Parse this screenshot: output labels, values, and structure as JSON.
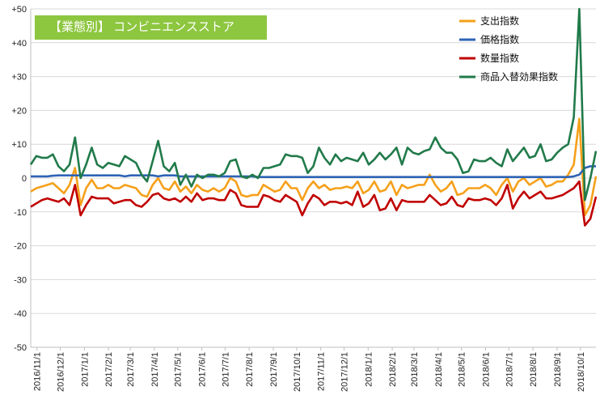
{
  "chart_data": {
    "type": "line",
    "title": "【業態別】 コンビニエンスストア",
    "xlabel": "",
    "ylabel": "",
    "ylim": [
      -50,
      50
    ],
    "yticks": [
      "+50",
      "+40",
      "+30",
      "+20",
      "+10",
      "0",
      "-10",
      "-20",
      "-30",
      "-40",
      "-50"
    ],
    "ytick_values": [
      50,
      40,
      30,
      20,
      10,
      0,
      -10,
      -20,
      -30,
      -40,
      -50
    ],
    "grid": true,
    "legend_position": "top-right",
    "x_tick_labels": [
      "2016/11/1",
      "2016/12/1",
      "2017/1/1",
      "2017/2/1",
      "2017/3/1",
      "2017/4/1",
      "2017/5/1",
      "2017/6/1",
      "2017/7/1",
      "2017/8/1",
      "2017/9/1",
      "2017/10/1",
      "2017/11/1",
      "2017/12/1",
      "2018/1/1",
      "2018/2/1",
      "2018/3/1",
      "2018/4/1",
      "2018/5/1",
      "2018/6/1",
      "2018/7/1",
      "2018/8/1",
      "2018/9/1",
      "2018/10/1"
    ],
    "x_start": "2016/10/24",
    "x_end": "2018/10/21",
    "series": [
      {
        "name": "支出指数",
        "color": "#f5a01a",
        "values": [
          -4,
          -3,
          -2.5,
          -2,
          -1.5,
          -3,
          -4.5,
          -2,
          3,
          -8,
          -3,
          -0.5,
          -3,
          -3,
          -2,
          -3,
          -3,
          -2,
          -2.5,
          -3,
          -5,
          -5.5,
          -2,
          0,
          -3,
          -3.5,
          -1,
          -4,
          -2.5,
          -4.5,
          -2,
          -3.5,
          -4,
          -3,
          -4,
          -3,
          0,
          -1,
          -5,
          -5.5,
          -5,
          -5,
          -2,
          -3,
          -4,
          -3.5,
          -1,
          -3,
          -3,
          -6.5,
          -3,
          -1,
          -3,
          -2,
          -3.5,
          -3,
          -3,
          -2.5,
          -3,
          -1,
          -4.5,
          -3.5,
          -1,
          -4,
          -3.5,
          -1,
          -5,
          -2,
          -3,
          -2.5,
          -2,
          -2,
          1,
          -2,
          -4,
          -3,
          -1,
          -5,
          -4.5,
          -3,
          -3,
          -3,
          -2,
          -3,
          -5,
          -2,
          0,
          -4,
          -1,
          0,
          -2,
          -1,
          0,
          -2.5,
          -2,
          -1,
          -1,
          1,
          4,
          17.5,
          -11,
          -8,
          0.5
        ]
      },
      {
        "name": "価格指数",
        "color": "#2e63b5",
        "values": [
          0.5,
          0.5,
          0.5,
          0.5,
          0.7,
          0.8,
          0.8,
          0.8,
          0.8,
          0.8,
          0.8,
          0.8,
          0.8,
          0.8,
          0.8,
          0.8,
          0.8,
          0.5,
          0.8,
          0.8,
          0.8,
          0.8,
          0.8,
          0.5,
          0.8,
          0.8,
          0.8,
          0.5,
          0.5,
          0.5,
          0.5,
          0.5,
          0.5,
          0.5,
          0.5,
          0.5,
          0.5,
          0.5,
          0.5,
          0.5,
          0.5,
          0.3,
          0.3,
          0.3,
          0.3,
          0.3,
          0.3,
          0.3,
          0.3,
          0.3,
          0.3,
          0.3,
          0.3,
          0.3,
          0.3,
          0.3,
          0.3,
          0.3,
          0.3,
          0.3,
          0.3,
          0.3,
          0.3,
          0.3,
          0.3,
          0.3,
          0.3,
          0.3,
          0.3,
          0.3,
          0.3,
          0.3,
          0.3,
          0.3,
          0.3,
          0.3,
          0.3,
          0.3,
          0.3,
          0.3,
          0.3,
          0.3,
          0.3,
          0.3,
          0.3,
          0.3,
          0.3,
          0.3,
          0.3,
          0.3,
          0.3,
          0.3,
          0.3,
          0.3,
          0.3,
          0.3,
          0.3,
          0.3,
          0.5,
          1,
          3,
          3.5,
          3.5
        ]
      },
      {
        "name": "数量指数",
        "color": "#c00000",
        "values": [
          -8.5,
          -7.5,
          -6.5,
          -6,
          -6.5,
          -7,
          -6,
          -8,
          -2,
          -11,
          -8,
          -5.5,
          -6,
          -6,
          -6,
          -7.5,
          -7,
          -6.5,
          -6.5,
          -8,
          -8.5,
          -7,
          -5,
          -4.5,
          -6,
          -6.5,
          -6,
          -7,
          -5.5,
          -7,
          -4.5,
          -6.5,
          -6,
          -6,
          -6.5,
          -6.5,
          -3.5,
          -4.5,
          -8,
          -8.5,
          -8.5,
          -8.5,
          -5,
          -5.5,
          -6.5,
          -7,
          -5,
          -6,
          -7,
          -11,
          -7.5,
          -5,
          -6,
          -8,
          -7,
          -7,
          -7.5,
          -7,
          -8,
          -4,
          -8.5,
          -7.5,
          -5,
          -9.5,
          -9,
          -6,
          -9.5,
          -6.5,
          -7,
          -7,
          -7,
          -7,
          -5,
          -6.5,
          -8,
          -7.5,
          -5.5,
          -8,
          -8.5,
          -6,
          -6.5,
          -6.5,
          -6,
          -6.5,
          -8,
          -6,
          -2,
          -9,
          -6,
          -4,
          -6,
          -5,
          -4,
          -6,
          -6,
          -5.5,
          -5,
          -4,
          -3,
          -1,
          -14,
          -12,
          -5.5
        ]
      },
      {
        "name": "商品入替効果指数",
        "color": "#217a4a",
        "values": [
          4,
          6.5,
          6,
          6,
          7,
          3.5,
          2,
          4,
          12,
          0,
          4,
          9,
          4,
          3,
          4.5,
          4,
          3.5,
          6.5,
          5.5,
          4.5,
          1,
          -1,
          5,
          11,
          3.5,
          2,
          4.5,
          -2,
          1,
          -2.5,
          1,
          0,
          1,
          1,
          0.5,
          1.5,
          5,
          5.5,
          0.5,
          0,
          1,
          0,
          3,
          3,
          3.5,
          4,
          7,
          6.5,
          6.5,
          6,
          1.5,
          3.5,
          9,
          6,
          4,
          7,
          5,
          6,
          5.5,
          5,
          7.5,
          4,
          5.5,
          7.5,
          5.5,
          7,
          9,
          4,
          9,
          7.5,
          7,
          8,
          8.5,
          12,
          9,
          7.5,
          7.5,
          5.5,
          1.5,
          2,
          5.5,
          5,
          5,
          6,
          4.5,
          3.5,
          8.5,
          5,
          7,
          9,
          6,
          6.5,
          10,
          5,
          5.5,
          7.5,
          9,
          10,
          18,
          50,
          -6.5,
          0,
          8
        ]
      }
    ]
  }
}
